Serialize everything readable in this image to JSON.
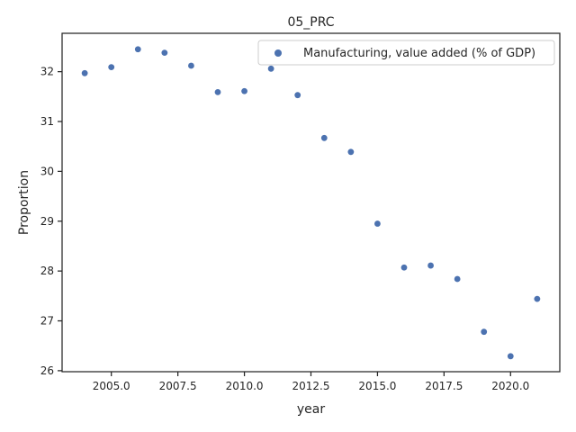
{
  "chart_data": {
    "type": "scatter",
    "title": "05_PRC",
    "xlabel": "year",
    "ylabel": "Proportion",
    "xlim": [
      2003.15,
      2021.85
    ],
    "ylim": [
      25.98,
      32.77
    ],
    "xticks": [
      2005.0,
      2007.5,
      2010.0,
      2012.5,
      2015.0,
      2017.5,
      2020.0
    ],
    "xtick_labels": [
      "2005.0",
      "2007.5",
      "2010.0",
      "2012.5",
      "2015.0",
      "2017.5",
      "2020.0"
    ],
    "yticks": [
      26,
      27,
      28,
      29,
      30,
      31,
      32
    ],
    "ytick_labels": [
      "26",
      "27",
      "28",
      "29",
      "30",
      "31",
      "32"
    ],
    "grid": false,
    "legend_position": "top-right",
    "series": [
      {
        "name": "Manufacturing, value added (% of GDP)",
        "color": "#4c72b0",
        "x": [
          2004,
          2005,
          2006,
          2007,
          2008,
          2009,
          2010,
          2011,
          2012,
          2013,
          2014,
          2015,
          2016,
          2017,
          2018,
          2019,
          2020,
          2021
        ],
        "y": [
          31.97,
          32.09,
          32.45,
          32.38,
          32.12,
          31.59,
          31.61,
          32.06,
          31.53,
          30.67,
          30.39,
          28.95,
          28.07,
          28.11,
          27.84,
          26.78,
          26.29,
          27.44
        ]
      }
    ]
  }
}
